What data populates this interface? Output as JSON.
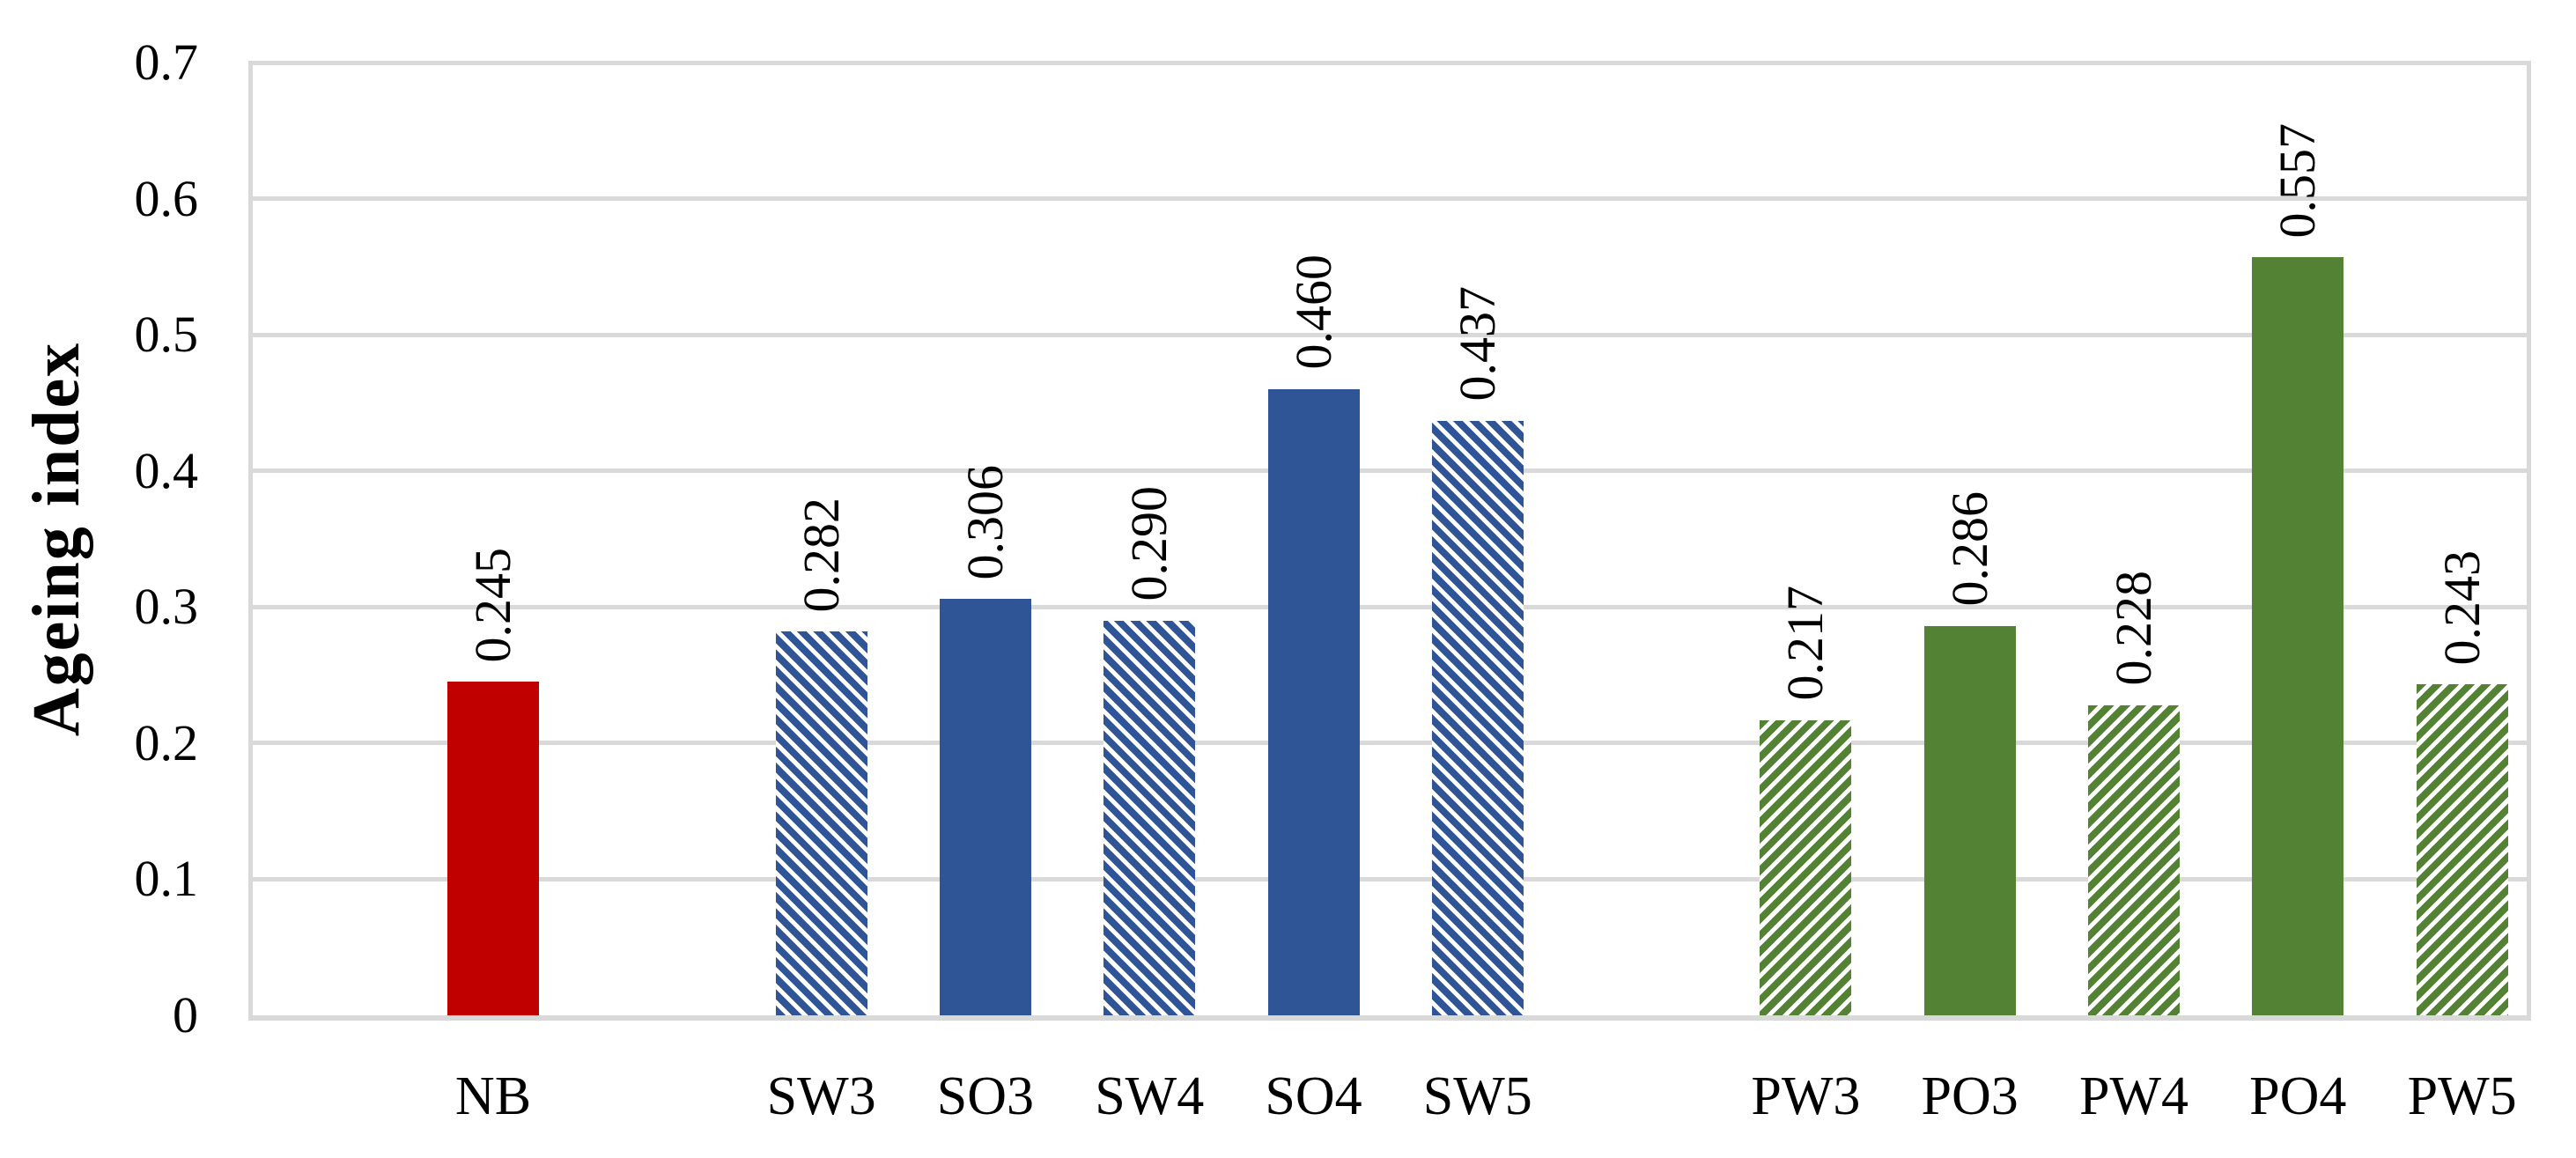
{
  "chart_data": {
    "type": "bar",
    "title": "",
    "xlabel": "",
    "ylabel": "Ageing index",
    "ylim": [
      0,
      0.7
    ],
    "ytick_labels": [
      "0",
      "0.1",
      "0.2",
      "0.3",
      "0.4",
      "0.5",
      "0.6",
      "0.7"
    ],
    "grid": true,
    "legend": false,
    "categories": [
      "NB",
      "SW3",
      "SO3",
      "SW4",
      "SO4",
      "SW5",
      "PW3",
      "PO3",
      "PW4",
      "PO4",
      "PW5"
    ],
    "bars": [
      {
        "category": "NB",
        "value": 0.245,
        "label": "0.245",
        "group": "NB",
        "fill": "solid",
        "color": "#C00000"
      },
      {
        "category": "SW3",
        "value": 0.282,
        "label": "0.282",
        "group": "S",
        "fill": "hatch-backslash",
        "color": "#2F5597"
      },
      {
        "category": "SO3",
        "value": 0.306,
        "label": "0.306",
        "group": "S",
        "fill": "solid",
        "color": "#2F5597"
      },
      {
        "category": "SW4",
        "value": 0.29,
        "label": "0.290",
        "group": "S",
        "fill": "hatch-backslash",
        "color": "#2F5597"
      },
      {
        "category": "SO4",
        "value": 0.46,
        "label": "0.460",
        "group": "S",
        "fill": "solid",
        "color": "#2F5597"
      },
      {
        "category": "SW5",
        "value": 0.437,
        "label": "0.437",
        "group": "S",
        "fill": "hatch-backslash",
        "color": "#2F5597"
      },
      {
        "category": "PW3",
        "value": 0.217,
        "label": "0.217",
        "group": "P",
        "fill": "hatch-forwardslash",
        "color": "#548235"
      },
      {
        "category": "PO3",
        "value": 0.286,
        "label": "0.286",
        "group": "P",
        "fill": "solid",
        "color": "#548235"
      },
      {
        "category": "PW4",
        "value": 0.228,
        "label": "0.228",
        "group": "P",
        "fill": "hatch-forwardslash",
        "color": "#548235"
      },
      {
        "category": "PO4",
        "value": 0.557,
        "label": "0.557",
        "group": "P",
        "fill": "solid",
        "color": "#548235"
      },
      {
        "category": "PW5",
        "value": 0.243,
        "label": "0.243",
        "group": "P",
        "fill": "hatch-forwardslash",
        "color": "#548235"
      }
    ],
    "colors": {
      "neat_red": "#C00000",
      "s_blue": "#2F5597",
      "p_green": "#548235",
      "gridline": "#D9D9D9",
      "text": "#000000"
    }
  }
}
